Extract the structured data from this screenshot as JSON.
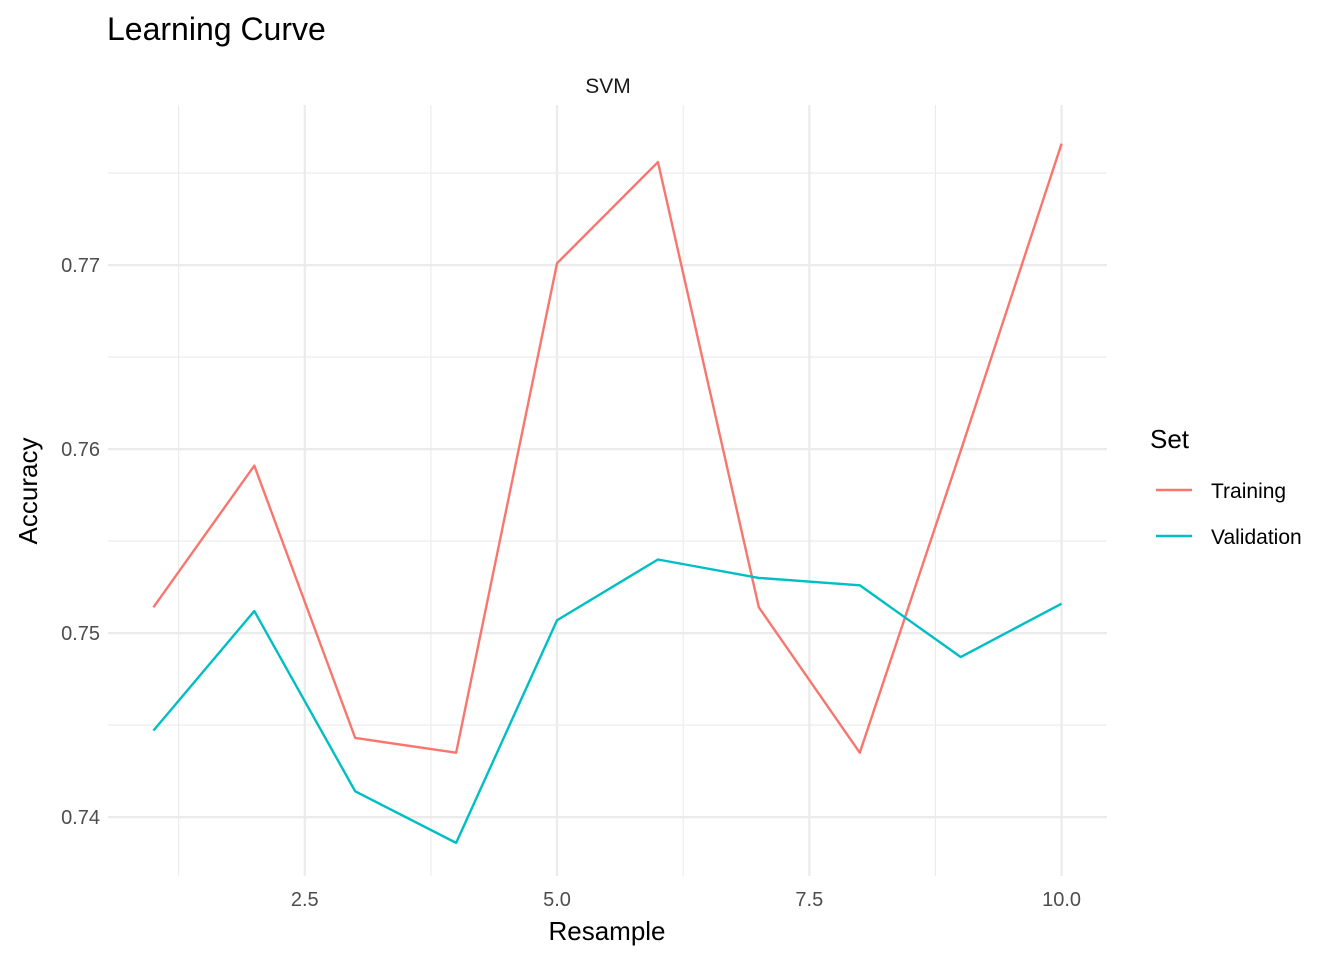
{
  "chart_data": {
    "type": "line",
    "title": "Learning Curve",
    "facet_label": "SVM",
    "xlabel": "Resample",
    "ylabel": "Accuracy",
    "x": [
      1,
      2,
      3,
      4,
      5,
      6,
      7,
      8,
      9,
      10
    ],
    "xlim": [
      0.55,
      10.45
    ],
    "ylim": [
      0.7368,
      0.7787
    ],
    "x_ticks": [
      2.5,
      5.0,
      7.5,
      10.0
    ],
    "x_tick_labels": [
      "2.5",
      "5.0",
      "7.5",
      "10.0"
    ],
    "x_minor": [
      1.25,
      3.75,
      6.25,
      8.75
    ],
    "y_ticks": [
      0.74,
      0.75,
      0.76,
      0.77
    ],
    "y_tick_labels": [
      "0.74",
      "0.75",
      "0.76",
      "0.77"
    ],
    "y_minor": [
      0.745,
      0.755,
      0.765,
      0.775
    ],
    "grid": true,
    "legend": {
      "title": "Set",
      "position": "right"
    },
    "series": [
      {
        "name": "Training",
        "color": "#F8766D",
        "values": [
          0.7514,
          0.7591,
          0.7443,
          0.7435,
          0.7701,
          0.7756,
          0.7514,
          0.7435,
          0.7599,
          0.7766
        ]
      },
      {
        "name": "Validation",
        "color": "#00BFC4",
        "values": [
          0.7447,
          0.7512,
          0.7414,
          0.7386,
          0.7507,
          0.754,
          0.753,
          0.7526,
          0.7487,
          0.7516
        ]
      }
    ]
  }
}
